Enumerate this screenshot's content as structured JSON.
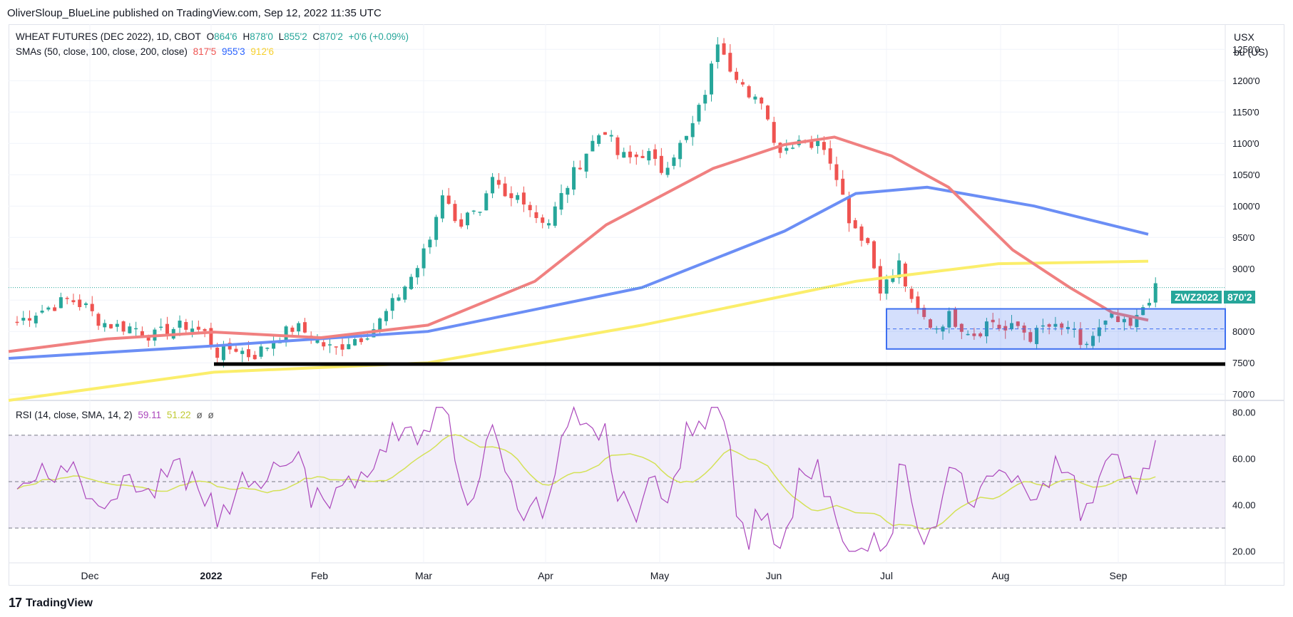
{
  "header": {
    "publisher_line": "OliverSloup_BlueLine published on TradingView.com, Sep 12, 2022 11:35 UTC"
  },
  "legend": {
    "main_title": "WHEAT FUTURES (DEC 2022), 1D, CBOT",
    "o_label": "O",
    "o_value": "864'6",
    "h_label": "H",
    "h_value": "878'0",
    "l_label": "L",
    "l_value": "855'2",
    "c_label": "C",
    "c_value": "870'2",
    "change": "+0'6 (+0.09%)",
    "sma_title": "SMAs (50, close, 100, close, 200, close)",
    "sma50": "817'5",
    "sma100": "955'3",
    "sma200": "912'6",
    "rsi_title": "RSI (14, close, SMA, 14, 2)",
    "rsi_value": "59.11",
    "rsi_sma_value": "51.22",
    "rsi_extra1": "ø",
    "rsi_extra2": "ø"
  },
  "price_axis": {
    "currency": "USX",
    "unit": "bu (US)"
  },
  "symbol_badge": {
    "ticker": "ZWZ2022",
    "price": "870'2"
  },
  "footer": {
    "brand": "TradingView"
  },
  "colors": {
    "up": "#26a69a",
    "down": "#ef5350",
    "sma50": "#f08080",
    "sma100": "#6b8ef5",
    "sma200": "#fbee6b",
    "rsi": "#ab47bc",
    "rsi_sma": "#d4e157",
    "box": "#3d6ff0"
  },
  "chart_data": [
    {
      "type": "candlestick",
      "title": "WHEAT FUTURES (DEC 2022), 1D, CBOT",
      "ylim": [
        690,
        1290
      ],
      "y_ticks": [
        700,
        750,
        800,
        850,
        900,
        950,
        1000,
        1050,
        1100,
        1150,
        1200,
        1250
      ],
      "y_tick_labels": [
        "700'0",
        "750'0",
        "800'0",
        "850'0",
        "900'0",
        "950'0",
        "1000'0",
        "1050'0",
        "1100'0",
        "1150'0",
        "1200'0",
        "1250'0"
      ],
      "x_tick_labels": [
        "Dec",
        "2022",
        "Feb",
        "Mar",
        "Apr",
        "May",
        "Jun",
        "Jul",
        "Aug",
        "Sep"
      ],
      "close_path": [
        [
          0,
          815
        ],
        [
          10,
          830
        ],
        [
          20,
          840
        ],
        [
          30,
          852
        ],
        [
          40,
          838
        ],
        [
          48,
          815
        ],
        [
          58,
          808
        ],
        [
          68,
          806
        ],
        [
          78,
          792
        ],
        [
          90,
          805
        ],
        [
          98,
          810
        ],
        [
          108,
          797
        ],
        [
          115,
          765
        ],
        [
          125,
          775
        ],
        [
          135,
          760
        ],
        [
          142,
          773
        ],
        [
          150,
          790
        ],
        [
          160,
          808
        ],
        [
          168,
          795
        ],
        [
          175,
          780
        ],
        [
          183,
          770
        ],
        [
          190,
          785
        ],
        [
          198,
          792
        ],
        [
          206,
          807
        ],
        [
          214,
          835
        ],
        [
          222,
          868
        ],
        [
          230,
          900
        ],
        [
          238,
          950
        ],
        [
          246,
          1035
        ],
        [
          253,
          960
        ],
        [
          259,
          995
        ],
        [
          266,
          980
        ],
        [
          274,
          1040
        ],
        [
          282,
          1005
        ],
        [
          290,
          1020
        ],
        [
          298,
          985
        ],
        [
          306,
          975
        ],
        [
          314,
          1020
        ],
        [
          322,
          1060
        ],
        [
          330,
          1098
        ],
        [
          338,
          1125
        ],
        [
          346,
          1080
        ],
        [
          354,
          1075
        ],
        [
          362,
          1088
        ],
        [
          370,
          1055
        ],
        [
          378,
          1085
        ],
        [
          386,
          1110
        ],
        [
          392,
          1150
        ],
        [
          398,
          1200
        ],
        [
          404,
          1275
        ],
        [
          410,
          1225
        ],
        [
          416,
          1205
        ],
        [
          422,
          1160
        ],
        [
          428,
          1175
        ],
        [
          434,
          1120
        ],
        [
          440,
          1085
        ],
        [
          446,
          1102
        ],
        [
          452,
          1112
        ],
        [
          458,
          1095
        ],
        [
          464,
          1100
        ],
        [
          472,
          1050
        ],
        [
          478,
          985
        ],
        [
          484,
          960
        ],
        [
          490,
          940
        ],
        [
          496,
          870
        ],
        [
          502,
          880
        ],
        [
          508,
          910
        ],
        [
          514,
          845
        ],
        [
          520,
          825
        ],
        [
          528,
          805
        ],
        [
          536,
          825
        ],
        [
          544,
          808
        ],
        [
          552,
          795
        ],
        [
          560,
          820
        ],
        [
          568,
          800
        ],
        [
          576,
          808
        ],
        [
          584,
          790
        ],
        [
          592,
          810
        ],
        [
          600,
          800
        ],
        [
          606,
          810
        ],
        [
          612,
          770
        ],
        [
          618,
          790
        ],
        [
          624,
          805
        ],
        [
          630,
          820
        ],
        [
          636,
          810
        ],
        [
          642,
          805
        ],
        [
          648,
          840
        ],
        [
          654,
          865
        ],
        [
          658,
          870
        ]
      ],
      "ohlc_last": {
        "open": "864'6",
        "high": "878'0",
        "low": "855'2",
        "close": "870'2"
      },
      "series": [
        {
          "name": "SMA 50",
          "value": "817'5"
        },
        {
          "name": "SMA 100",
          "value": "955'3"
        },
        {
          "name": "SMA 200",
          "value": "912'6"
        }
      ],
      "annotations": {
        "support_line": 748,
        "range_box": [
          772,
          836
        ],
        "range_mid": 804,
        "last_price_line": 870
      }
    },
    {
      "type": "line",
      "title": "RSI (14, close, SMA, 14, 2)",
      "ylim": [
        15,
        85
      ],
      "y_ticks": [
        20,
        40,
        60,
        80
      ],
      "y_tick_labels": [
        "20.00",
        "40.00",
        "60.00",
        "80.00"
      ],
      "bands": [
        30,
        50,
        70
      ],
      "series": [
        {
          "name": "RSI",
          "last": "59.11"
        },
        {
          "name": "RSI SMA",
          "last": "51.22"
        }
      ]
    }
  ]
}
